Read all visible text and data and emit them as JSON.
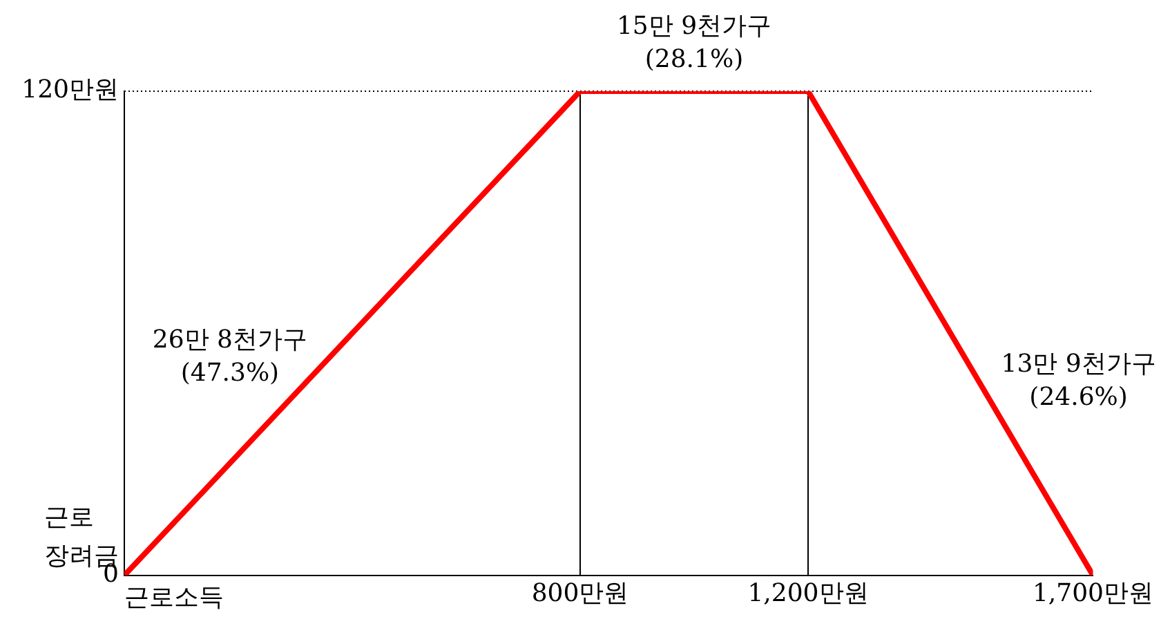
{
  "chart_data": {
    "type": "line",
    "xlabel": "근로소득",
    "ylabel": "근로\n장려금",
    "x": [
      0,
      800,
      1200,
      1700
    ],
    "series": [
      {
        "color": "#ff0000",
        "values": [
          0,
          120,
          120,
          0
        ]
      }
    ],
    "xlim": [
      0,
      1700
    ],
    "ylim": [
      0,
      120
    ],
    "xticks": [
      {
        "value": 800,
        "label": "800만원"
      },
      {
        "value": 1200,
        "label": "1,200만원"
      },
      {
        "value": 1700,
        "label": "1,700만원"
      }
    ],
    "yticks": [
      0,
      {
        "value": 120,
        "label": "120만원"
      }
    ],
    "ref_lines": [
      {
        "axis": "x",
        "value": 800,
        "color": "#000000",
        "line_style": "solid"
      },
      {
        "axis": "x",
        "value": 1200,
        "color": "#000000",
        "line_style": "solid"
      },
      {
        "axis": "y",
        "value": 120,
        "color": "#000000",
        "line_style": "dotted"
      }
    ],
    "annotations": [
      "26만 8천가구\n(47.3%)",
      "15만 9천가구\n(28.1%)",
      "13만 9천가구\n(24.6%)"
    ],
    "grid": false,
    "legend": false,
    "marker": "none",
    "line_style": "solid"
  }
}
